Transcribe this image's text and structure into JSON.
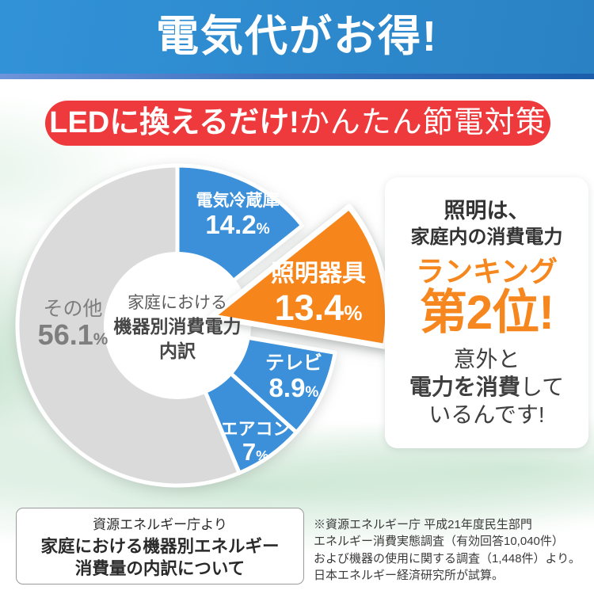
{
  "header": {
    "title": "電気代がお得!"
  },
  "led_banner": {
    "bold": "LEDに換えるだけ!",
    "regular": "かんたん節電対策"
  },
  "chart_data": {
    "type": "pie",
    "title": "家庭における機器別消費電力内訳",
    "center_label_lines": [
      "家庭における",
      "機器別消費電力",
      "内訳"
    ],
    "start_angle": "12-o-clock",
    "direction": "clockwise",
    "segments": [
      {
        "label": "電気冷蔵庫",
        "value": 14.2,
        "display": "14.2",
        "unit": "%",
        "color": "#3b90d9",
        "exploded": false
      },
      {
        "label": "照明器具",
        "value": 13.4,
        "display": "13.4",
        "unit": "%",
        "color": "#f6861e",
        "exploded": true
      },
      {
        "label": "テレビ",
        "value": 8.9,
        "display": "8.9",
        "unit": "%",
        "color": "#3b90d9",
        "exploded": false
      },
      {
        "label": "エアコン",
        "value": 7,
        "display": "7",
        "unit": "%",
        "color": "#3b90d9",
        "exploded": false
      },
      {
        "label": "その他",
        "value": 56.1,
        "display": "56.1",
        "unit": "%",
        "color": "#dadada",
        "exploded": false,
        "label_color": "#7e7e7e"
      }
    ]
  },
  "ranking_card": {
    "line1": "照明は、",
    "line2": "家庭内の消費電力",
    "line3": "ランキング",
    "line4": "第2位!",
    "line5": "意外と",
    "line6_bold": "電力を消費",
    "line6_rest": "して",
    "line7": "いるんです!",
    "accent_color": "#f6861e"
  },
  "source_box": {
    "line1": "資源エネルギー庁より",
    "line2": "家庭における機器別エネルギー",
    "line3": "消費量の内訳について"
  },
  "footnote": {
    "line1": "※資源エネルギー庁 平成21年度民生部門",
    "line2": "エネルギー消費実態調査（有効回答10,040件）",
    "line3": "および機器の使用に関する調査（1,448件）より。",
    "line4": "日本エネルギー経済研究所が試算。"
  },
  "colors": {
    "header_blue": "#2e8ccd",
    "header_strip_left": "#6f94da",
    "header_strip_right": "#1b5dab",
    "banner_red": "#ee3a3c",
    "pie_blue": "#3b90d9",
    "pie_orange": "#f6861e",
    "pie_gray": "#dadada",
    "accent_orange": "#f6861e"
  }
}
